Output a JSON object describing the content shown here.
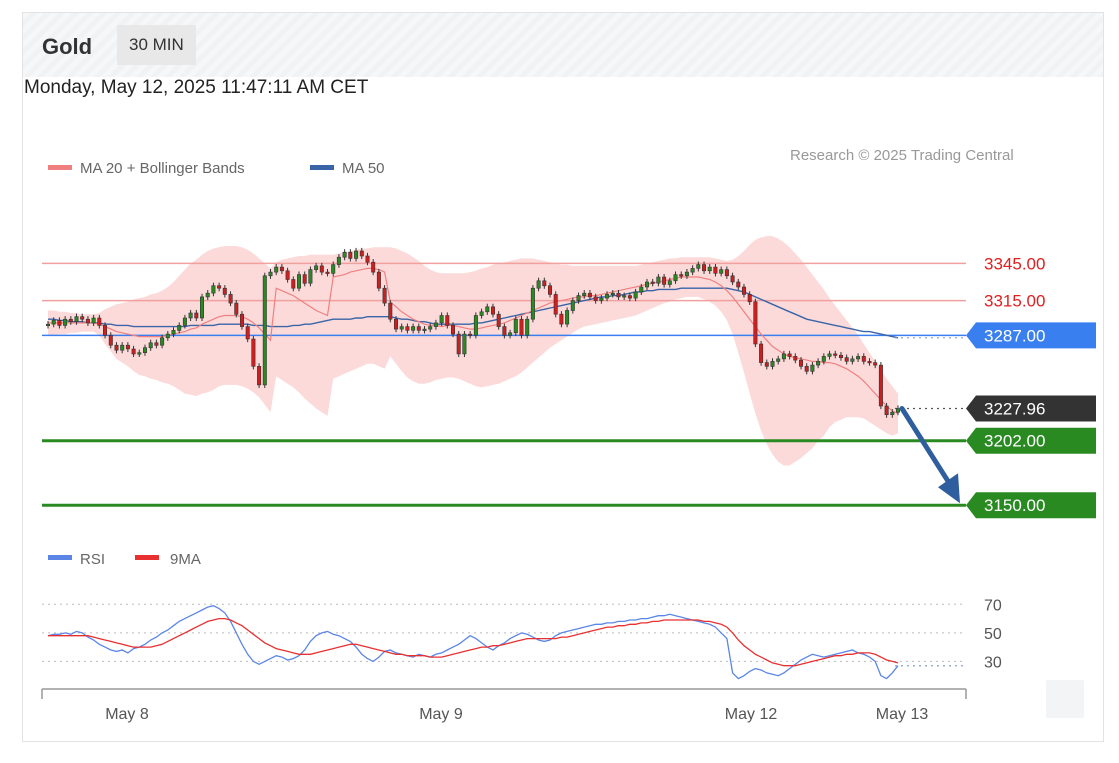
{
  "header": {
    "title": "Gold",
    "interval": "30 MIN"
  },
  "datetime": "Monday, May 12, 2025 11:47:11 AM CET",
  "legend": {
    "ma20": {
      "label": "MA 20 + Bollinger Bands",
      "color": "#f08080"
    },
    "ma50": {
      "label": "MA 50",
      "color": "#3a64a8"
    }
  },
  "credit": "Research © 2025 Trading Central",
  "colors": {
    "resistance": "#f1a0a0",
    "resistance_text": "#e02020",
    "pivot": "#3a7ff0",
    "support": "#2a8a22",
    "current": "#333333",
    "band": "#fbd3d3",
    "arrow": "#2f5e9e",
    "candle_up": "#2a8a22",
    "candle_down": "#cc2020"
  },
  "chart_data": [
    {
      "type": "candlestick",
      "y_range": [
        3130,
        3380
      ],
      "x_labels": [
        "May 8",
        "May 9",
        "May 12",
        "May 13"
      ],
      "levels": [
        {
          "kind": "resistance",
          "value": 3345.0,
          "label": "3345.00"
        },
        {
          "kind": "resistance",
          "value": 3315.0,
          "label": "3315.00"
        },
        {
          "kind": "pivot",
          "value": 3287.0,
          "label": "3287.00"
        },
        {
          "kind": "current",
          "value": 3227.96,
          "label": "3227.96"
        },
        {
          "kind": "support",
          "value": 3202.0,
          "label": "3202.00"
        },
        {
          "kind": "support",
          "value": 3150.0,
          "label": "3150.00"
        }
      ],
      "close": [
        3296,
        3299,
        3295,
        3300,
        3298,
        3302,
        3300,
        3297,
        3301,
        3295,
        3287,
        3279,
        3275,
        3279,
        3276,
        3272,
        3273,
        3277,
        3281,
        3279,
        3285,
        3288,
        3291,
        3295,
        3301,
        3305,
        3301,
        3318,
        3321,
        3327,
        3325,
        3320,
        3313,
        3304,
        3294,
        3284,
        3262,
        3247,
        3335,
        3338,
        3342,
        3339,
        3332,
        3325,
        3336,
        3329,
        3340,
        3343,
        3338,
        3337,
        3344,
        3350,
        3354,
        3349,
        3355,
        3351,
        3346,
        3338,
        3325,
        3313,
        3300,
        3292,
        3294,
        3291,
        3294,
        3291,
        3292,
        3294,
        3297,
        3303,
        3295,
        3288,
        3272,
        3288,
        3287,
        3303,
        3306,
        3310,
        3304,
        3294,
        3287,
        3289,
        3300,
        3287,
        3300,
        3325,
        3331,
        3327,
        3320,
        3304,
        3296,
        3307,
        3315,
        3319,
        3321,
        3318,
        3315,
        3317,
        3320,
        3321,
        3318,
        3319,
        3317,
        3322,
        3326,
        3330,
        3329,
        3334,
        3328,
        3331,
        3336,
        3335,
        3338,
        3341,
        3344,
        3339,
        3342,
        3337,
        3340,
        3335,
        3330,
        3326,
        3320,
        3314,
        3280,
        3265,
        3262,
        3266,
        3268,
        3272,
        3270,
        3267,
        3262,
        3258,
        3263,
        3266,
        3270,
        3272,
        3271,
        3269,
        3266,
        3268,
        3270,
        3266,
        3265,
        3263,
        3230,
        3223,
        3225,
        3228
      ],
      "ma20": [
        3297,
        3297,
        3297,
        3297,
        3297,
        3297,
        3297,
        3297,
        3297,
        3296,
        3294,
        3292,
        3290,
        3289,
        3288,
        3287,
        3286,
        3286,
        3286,
        3286,
        3286,
        3287,
        3288,
        3289,
        3290,
        3292,
        3293,
        3296,
        3298,
        3300,
        3302,
        3303,
        3303,
        3303,
        3302,
        3300,
        3297,
        3293,
        3288,
        3283,
        3325,
        3323,
        3321,
        3319,
        3316,
        3313,
        3310,
        3307,
        3305,
        3303,
        3334,
        3335,
        3336,
        3338,
        3339,
        3340,
        3341,
        3341,
        3340,
        3338,
        3314,
        3310,
        3306,
        3303,
        3300,
        3298,
        3296,
        3295,
        3295,
        3294,
        3295,
        3295,
        3294,
        3293,
        3292,
        3292,
        3293,
        3294,
        3295,
        3296,
        3297,
        3299,
        3301,
        3303,
        3305,
        3307,
        3309,
        3311,
        3313,
        3314,
        3315,
        3316,
        3317,
        3318,
        3318,
        3319,
        3319,
        3320,
        3321,
        3322,
        3323,
        3324,
        3325,
        3326,
        3327,
        3328,
        3329,
        3330,
        3331,
        3332,
        3333,
        3334,
        3334,
        3334,
        3334,
        3333,
        3332,
        3330,
        3327,
        3323,
        3318,
        3312,
        3306,
        3300,
        3294,
        3288,
        3283,
        3278,
        3275,
        3272,
        3270,
        3269,
        3268,
        3267,
        3266,
        3266,
        3265,
        3265,
        3264,
        3262,
        3260,
        3257,
        3254,
        3250,
        3245,
        3240,
        3235,
        3230,
        3226,
        3224
      ],
      "ma50": [
        3300,
        3300,
        3299,
        3299,
        3298,
        3298,
        3298,
        3297,
        3297,
        3297,
        3296,
        3296,
        3295,
        3295,
        3295,
        3294,
        3294,
        3294,
        3294,
        3294,
        3294,
        3294,
        3294,
        3294,
        3294,
        3295,
        3295,
        3295,
        3295,
        3295,
        3296,
        3296,
        3296,
        3296,
        3296,
        3296,
        3295,
        3295,
        3295,
        3294,
        3294,
        3294,
        3294,
        3295,
        3295,
        3296,
        3296,
        3297,
        3298,
        3299,
        3300,
        3300,
        3300,
        3300,
        3301,
        3301,
        3302,
        3302,
        3302,
        3302,
        3302,
        3301,
        3300,
        3300,
        3299,
        3298,
        3298,
        3297,
        3296,
        3296,
        3296,
        3296,
        3296,
        3296,
        3296,
        3297,
        3297,
        3298,
        3299,
        3300,
        3301,
        3302,
        3303,
        3304,
        3305,
        3306,
        3307,
        3308,
        3309,
        3310,
        3311,
        3312,
        3313,
        3314,
        3315,
        3316,
        3317,
        3318,
        3318,
        3319,
        3319,
        3320,
        3321,
        3322,
        3322,
        3323,
        3323,
        3324,
        3324,
        3324,
        3324,
        3325,
        3325,
        3325,
        3325,
        3325,
        3325,
        3325,
        3325,
        3325,
        3324,
        3323,
        3322,
        3320,
        3318,
        3316,
        3314,
        3312,
        3310,
        3308,
        3306,
        3304,
        3302,
        3300,
        3299,
        3298,
        3297,
        3296,
        3295,
        3294,
        3293,
        3292,
        3291,
        3290,
        3290,
        3289,
        3288,
        3287,
        3286,
        3285
      ],
      "bb_upper": [
        3307,
        3307,
        3306,
        3306,
        3305,
        3305,
        3304,
        3304,
        3304,
        3305,
        3308,
        3310,
        3312,
        3313,
        3314,
        3316,
        3317,
        3318,
        3320,
        3321,
        3323,
        3326,
        3330,
        3335,
        3340,
        3345,
        3348,
        3352,
        3355,
        3357,
        3358,
        3359,
        3359,
        3359,
        3358,
        3356,
        3353,
        3349,
        3345,
        3341,
        3346,
        3348,
        3349,
        3350,
        3351,
        3351,
        3352,
        3352,
        3352,
        3352,
        3352,
        3353,
        3354,
        3355,
        3356,
        3357,
        3357,
        3358,
        3358,
        3358,
        3358,
        3357,
        3355,
        3353,
        3350,
        3347,
        3343,
        3340,
        3338,
        3337,
        3337,
        3337,
        3337,
        3337,
        3338,
        3339,
        3341,
        3342,
        3344,
        3345,
        3346,
        3347,
        3348,
        3349,
        3349,
        3349,
        3348,
        3347,
        3346,
        3345,
        3344,
        3344,
        3343,
        3343,
        3343,
        3343,
        3343,
        3343,
        3343,
        3343,
        3343,
        3343,
        3343,
        3343,
        3344,
        3345,
        3346,
        3347,
        3348,
        3349,
        3349,
        3350,
        3350,
        3350,
        3350,
        3350,
        3350,
        3349,
        3348,
        3347,
        3348,
        3351,
        3355,
        3360,
        3364,
        3366,
        3367,
        3367,
        3365,
        3362,
        3358,
        3353,
        3348,
        3342,
        3336,
        3330,
        3324,
        3317,
        3311,
        3305,
        3299,
        3293,
        3287,
        3280,
        3273,
        3266,
        3259,
        3252,
        3246,
        3240
      ],
      "bb_lower": [
        3287,
        3287,
        3288,
        3288,
        3289,
        3289,
        3290,
        3290,
        3290,
        3287,
        3280,
        3274,
        3268,
        3265,
        3262,
        3258,
        3255,
        3254,
        3252,
        3251,
        3249,
        3248,
        3246,
        3243,
        3240,
        3239,
        3238,
        3240,
        3241,
        3243,
        3246,
        3247,
        3247,
        3247,
        3246,
        3244,
        3241,
        3237,
        3231,
        3225,
        3254,
        3251,
        3248,
        3245,
        3241,
        3236,
        3232,
        3228,
        3225,
        3222,
        3252,
        3254,
        3256,
        3258,
        3260,
        3262,
        3264,
        3264,
        3262,
        3260,
        3270,
        3264,
        3258,
        3253,
        3250,
        3248,
        3248,
        3249,
        3251,
        3252,
        3253,
        3253,
        3252,
        3250,
        3248,
        3246,
        3245,
        3246,
        3247,
        3248,
        3250,
        3252,
        3254,
        3257,
        3261,
        3265,
        3269,
        3273,
        3277,
        3280,
        3283,
        3286,
        3289,
        3292,
        3294,
        3295,
        3296,
        3297,
        3298,
        3299,
        3300,
        3301,
        3302,
        3303,
        3305,
        3307,
        3309,
        3311,
        3313,
        3314,
        3316,
        3317,
        3318,
        3318,
        3318,
        3316,
        3314,
        3311,
        3306,
        3299,
        3288,
        3273,
        3257,
        3240,
        3224,
        3210,
        3199,
        3191,
        3185,
        3182,
        3182,
        3185,
        3188,
        3192,
        3196,
        3202,
        3206,
        3213,
        3217,
        3219,
        3221,
        3221,
        3221,
        3220,
        3217,
        3214,
        3211,
        3208,
        3206,
        3208
      ]
    },
    {
      "type": "line",
      "title": "RSI",
      "y_range": [
        10,
        80
      ],
      "y_ticks": [
        70,
        50,
        30
      ],
      "series": [
        {
          "name": "RSI",
          "color": "#5b86e5",
          "values": [
            48,
            49,
            49,
            50,
            49,
            51,
            50,
            47,
            45,
            42,
            40,
            38,
            37,
            38,
            36,
            39,
            40,
            42,
            45,
            47,
            50,
            52,
            55,
            58,
            60,
            62,
            64,
            66,
            68,
            69,
            67,
            64,
            58,
            50,
            42,
            35,
            30,
            28,
            30,
            32,
            34,
            33,
            31,
            32,
            34,
            38,
            44,
            48,
            50,
            51,
            49,
            48,
            46,
            44,
            40,
            35,
            32,
            30,
            33,
            37,
            38,
            36,
            35,
            34,
            33,
            35,
            34,
            33,
            35,
            36,
            38,
            40,
            42,
            45,
            48,
            46,
            43,
            40,
            38,
            41,
            43,
            46,
            48,
            50,
            49,
            47,
            45,
            44,
            45,
            48,
            50,
            51,
            52,
            53,
            54,
            55,
            56,
            56,
            57,
            57,
            58,
            58,
            59,
            59,
            60,
            60,
            61,
            62,
            62,
            63,
            62,
            61,
            60,
            59,
            58,
            57,
            56,
            54,
            50,
            46,
            22,
            18,
            20,
            23,
            25,
            24,
            22,
            21,
            20,
            22,
            25,
            28,
            31,
            33,
            35,
            34,
            33,
            34,
            35,
            36,
            37,
            38,
            36,
            35,
            33,
            30,
            20,
            18,
            22,
            27
          ]
        },
        {
          "name": "9MA",
          "color": "#e83030",
          "values": [
            48,
            48,
            48,
            48,
            48,
            48,
            48,
            48,
            47,
            46,
            45,
            44,
            43,
            42,
            41,
            40,
            40,
            40,
            40,
            41,
            42,
            44,
            46,
            48,
            50,
            52,
            54,
            56,
            58,
            59,
            60,
            60,
            59,
            57,
            55,
            52,
            49,
            46,
            43,
            41,
            39,
            38,
            37,
            36,
            35,
            35,
            35,
            36,
            37,
            38,
            39,
            40,
            41,
            42,
            42,
            41,
            40,
            39,
            38,
            37,
            36,
            35,
            35,
            34,
            34,
            34,
            34,
            33,
            33,
            33,
            34,
            35,
            36,
            37,
            38,
            39,
            40,
            40,
            41,
            41,
            42,
            43,
            44,
            45,
            46,
            46,
            46,
            46,
            46,
            46,
            47,
            47,
            48,
            49,
            50,
            51,
            52,
            53,
            54,
            54,
            55,
            55,
            56,
            56,
            57,
            57,
            58,
            58,
            59,
            59,
            59,
            59,
            59,
            59,
            59,
            58,
            58,
            57,
            56,
            54,
            50,
            45,
            41,
            38,
            35,
            33,
            31,
            29,
            28,
            27,
            27,
            27,
            28,
            29,
            30,
            31,
            32,
            33,
            34,
            34,
            35,
            35,
            36,
            36,
            36,
            35,
            33,
            31,
            30,
            29
          ]
        }
      ]
    }
  ]
}
